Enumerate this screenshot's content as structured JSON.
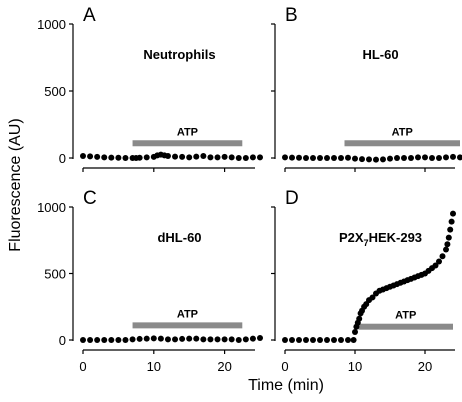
{
  "chart_data": {
    "type": "scatter",
    "ylabel": "Fluorescence (AU)",
    "xlabel": "Time (min)",
    "xlim": [
      0,
      25
    ],
    "ylim": [
      0,
      1000
    ],
    "x_ticks": [
      0,
      10,
      20
    ],
    "y_ticks": [
      0,
      500,
      1000
    ],
    "x_tick_labels": [
      "0",
      "10",
      "20"
    ],
    "y_tick_labels": [
      "0",
      "500",
      "1000"
    ],
    "colors": {
      "points": "#000000",
      "atp_bar": "#8a8a8a"
    },
    "panels": [
      {
        "letter": "A",
        "title": "Neutrophils",
        "title_html": false,
        "atp": {
          "label": "ATP",
          "start": 7,
          "end": 22.5,
          "value": 110
        },
        "series": [
          {
            "x": [
              0,
              1,
              2,
              3,
              4,
              5,
              6,
              7,
              7.5,
              8,
              9,
              10,
              10.5,
              11,
              11.5,
              12,
              13,
              14,
              15,
              16,
              17,
              18,
              19,
              20,
              21,
              22,
              23,
              24,
              25
            ],
            "y": [
              15,
              12,
              8,
              5,
              3,
              2,
              0,
              0,
              0,
              2,
              5,
              8,
              20,
              25,
              20,
              15,
              10,
              8,
              5,
              10,
              15,
              5,
              5,
              8,
              5,
              0,
              0,
              5,
              5
            ]
          }
        ]
      },
      {
        "letter": "B",
        "title": "HL-60",
        "title_html": false,
        "atp": {
          "label": "ATP",
          "start": 8.5,
          "end": 25,
          "value": 110
        },
        "series": [
          {
            "x": [
              0,
              1,
              2,
              3,
              4,
              5,
              6,
              7,
              8,
              9,
              10,
              11,
              12,
              13,
              14,
              15,
              16,
              17,
              18,
              19,
              20,
              21,
              22,
              23,
              24,
              25
            ],
            "y": [
              5,
              3,
              2,
              0,
              0,
              0,
              0,
              0,
              0,
              2,
              -5,
              -8,
              -10,
              -12,
              -10,
              -5,
              0,
              0,
              0,
              5,
              5,
              0,
              0,
              5,
              8,
              5
            ]
          }
        ]
      },
      {
        "letter": "C",
        "title": "dHL-60",
        "title_html": false,
        "atp": {
          "label": "ATP",
          "start": 7,
          "end": 22.5,
          "value": 110
        },
        "series": [
          {
            "x": [
              0,
              1,
              2,
              3,
              4,
              5,
              6,
              7,
              8,
              9,
              10,
              11,
              12,
              13,
              14,
              15,
              16,
              17,
              18,
              19,
              20,
              21,
              22,
              23,
              24,
              25
            ],
            "y": [
              0,
              0,
              0,
              0,
              0,
              0,
              0,
              5,
              8,
              10,
              12,
              10,
              5,
              5,
              8,
              10,
              10,
              5,
              5,
              5,
              5,
              5,
              0,
              5,
              10,
              15
            ]
          }
        ]
      },
      {
        "letter": "D",
        "title_html": true,
        "title_parts": {
          "pre": "P2X",
          "sub": "7",
          "post": "HEK-293"
        },
        "atp": {
          "label": "ATP",
          "start": 10.5,
          "end": 24,
          "value": 100
        },
        "series": [
          {
            "x": [
              0,
              1,
              2,
              3,
              4,
              5,
              6,
              7,
              8,
              9,
              9.8,
              10,
              10.2,
              10.4,
              10.6,
              10.8,
              11,
              11.3,
              11.6,
              12,
              12.5,
              13,
              13.5,
              14,
              14.5,
              15,
              15.5,
              16,
              16.5,
              17,
              17.5,
              18,
              18.5,
              19,
              19.5,
              20,
              20.5,
              21,
              21.5,
              22,
              22.5,
              23,
              23.2,
              23.4,
              23.6,
              23.8,
              24
            ],
            "y": [
              0,
              0,
              0,
              0,
              0,
              0,
              0,
              0,
              0,
              0,
              0,
              60,
              100,
              130,
              160,
              200,
              220,
              250,
              270,
              300,
              320,
              350,
              370,
              380,
              390,
              400,
              410,
              420,
              430,
              440,
              450,
              460,
              470,
              480,
              490,
              500,
              520,
              540,
              560,
              590,
              630,
              680,
              720,
              770,
              830,
              890,
              950
            ]
          }
        ]
      }
    ]
  }
}
